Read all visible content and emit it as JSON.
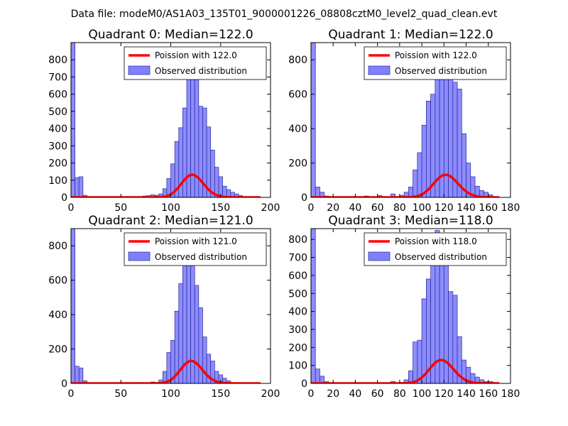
{
  "figure": {
    "title": "Data file: modeM0/AS1A03_135T01_9000001226_08808cztM0_level2_quad_clean.evt"
  },
  "chart_data": [
    {
      "type": "bar",
      "title": "Quadrant 0: Median=122.0",
      "xlim": [
        0,
        200
      ],
      "ylim": [
        0,
        900
      ],
      "xticks": [
        "0",
        "50",
        "100",
        "150",
        "200"
      ],
      "yticks": [
        "0",
        "100",
        "200",
        "300",
        "400",
        "500",
        "600",
        "700",
        "800"
      ],
      "bin_width": 4,
      "bin_starts": [
        0,
        4,
        8,
        12,
        64,
        72,
        76,
        80,
        84,
        88,
        92,
        96,
        100,
        104,
        108,
        112,
        116,
        120,
        124,
        128,
        132,
        136,
        140,
        144,
        148,
        152,
        156,
        160,
        164,
        168,
        172
      ],
      "counts": [
        900,
        115,
        120,
        12,
        5,
        8,
        10,
        15,
        12,
        20,
        50,
        110,
        195,
        325,
        405,
        520,
        760,
        850,
        760,
        530,
        520,
        410,
        275,
        175,
        120,
        65,
        45,
        30,
        20,
        10,
        5
      ],
      "series": [
        {
          "name": "Observed distribution",
          "color": "#7f7fff"
        },
        {
          "name": "Poission with 122.0",
          "color": "#ff0000",
          "lambda": 122.0,
          "scale": 3640
        }
      ],
      "legend_position": "top-right"
    },
    {
      "type": "bar",
      "title": "Quadrant 1: Median=122.0",
      "xlim": [
        0,
        180
      ],
      "ylim": [
        0,
        900
      ],
      "xticks": [
        "0",
        "20",
        "40",
        "60",
        "80",
        "100",
        "120",
        "140",
        "160",
        "180"
      ],
      "yticks": [
        "0",
        "200",
        "400",
        "600",
        "800"
      ],
      "bin_width": 4,
      "bin_starts": [
        0,
        4,
        8,
        12,
        48,
        60,
        72,
        80,
        84,
        88,
        92,
        96,
        100,
        104,
        108,
        112,
        116,
        120,
        124,
        128,
        132,
        136,
        140,
        144,
        148,
        152,
        156,
        160
      ],
      "counts": [
        900,
        60,
        30,
        8,
        8,
        10,
        20,
        12,
        30,
        60,
        160,
        260,
        420,
        560,
        600,
        700,
        760,
        850,
        800,
        670,
        630,
        370,
        200,
        120,
        65,
        40,
        30,
        15
      ],
      "series": [
        {
          "name": "Observed distribution",
          "color": "#7f7fff"
        },
        {
          "name": "Poission with 122.0",
          "color": "#ff0000",
          "lambda": 122.0,
          "scale": 3640
        }
      ],
      "legend_position": "top-right"
    },
    {
      "type": "bar",
      "title": "Quadrant 2: Median=121.0",
      "xlim": [
        0,
        200
      ],
      "ylim": [
        0,
        900
      ],
      "xticks": [
        "0",
        "50",
        "100",
        "150",
        "200"
      ],
      "yticks": [
        "0",
        "200",
        "400",
        "600",
        "800"
      ],
      "bin_width": 4,
      "bin_starts": [
        0,
        4,
        8,
        12,
        64,
        80,
        88,
        92,
        96,
        100,
        104,
        108,
        112,
        116,
        120,
        124,
        128,
        132,
        136,
        140,
        144,
        148,
        152,
        156,
        160
      ],
      "counts": [
        900,
        100,
        90,
        15,
        5,
        8,
        20,
        70,
        180,
        250,
        420,
        580,
        750,
        860,
        760,
        570,
        440,
        270,
        170,
        130,
        70,
        50,
        30,
        15,
        5
      ],
      "series": [
        {
          "name": "Observed distribution",
          "color": "#7f7fff"
        },
        {
          "name": "Poission with 121.0",
          "color": "#ff0000",
          "lambda": 121.0,
          "scale": 3610
        }
      ],
      "legend_position": "top-right"
    },
    {
      "type": "bar",
      "title": "Quadrant 3: Median=118.0",
      "xlim": [
        0,
        180
      ],
      "ylim": [
        0,
        860
      ],
      "xticks": [
        "0",
        "20",
        "40",
        "60",
        "80",
        "100",
        "120",
        "140",
        "160",
        "180"
      ],
      "yticks": [
        "0",
        "100",
        "200",
        "300",
        "400",
        "500",
        "600",
        "700",
        "800"
      ],
      "bin_width": 4,
      "bin_starts": [
        0,
        4,
        8,
        12,
        72,
        84,
        88,
        92,
        96,
        100,
        104,
        108,
        112,
        116,
        120,
        124,
        128,
        132,
        136,
        140,
        144,
        148,
        152,
        156,
        160,
        164
      ],
      "counts": [
        860,
        80,
        40,
        10,
        10,
        20,
        70,
        230,
        240,
        470,
        580,
        760,
        850,
        680,
        820,
        510,
        490,
        260,
        130,
        90,
        55,
        35,
        20,
        10,
        10,
        5
      ],
      "series": [
        {
          "name": "Observed distribution",
          "color": "#7f7fff"
        },
        {
          "name": "Poission with 118.0",
          "color": "#ff0000",
          "lambda": 118.0,
          "scale": 3540
        }
      ],
      "legend_position": "top-right"
    }
  ]
}
